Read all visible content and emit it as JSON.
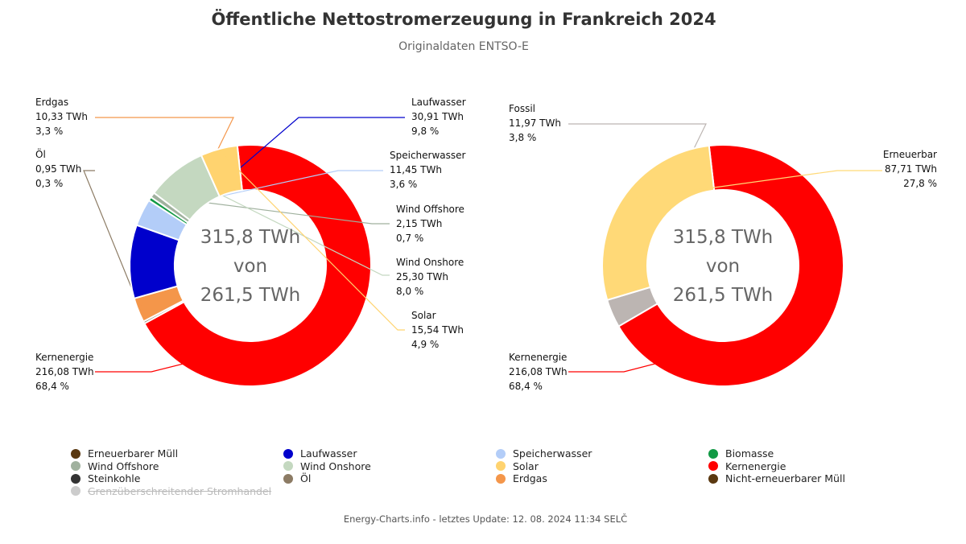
{
  "header": {
    "title": "Öffentliche Nettostromerzeugung in Frankreich 2024",
    "subtitle": "Originaldaten ENTSO-E"
  },
  "chart_data": [
    {
      "type": "pie",
      "variant": "donut",
      "center_text": [
        "315,8 TWh",
        "von",
        "261,5 TWh"
      ],
      "unit": "TWh",
      "slices": [
        {
          "name": "Kernenergie",
          "value": 216.08,
          "value_label": "216,08 TWh",
          "percent_label": "68,4 %",
          "color": "#ff0000"
        },
        {
          "name": "Öl",
          "value": 0.95,
          "value_label": "0,95 TWh",
          "percent_label": "0,3 %",
          "color": "#8c7b64"
        },
        {
          "name": "Erdgas",
          "value": 10.33,
          "value_label": "10,33 TWh",
          "percent_label": "3,3 %",
          "color": "#f4964a"
        },
        {
          "name": "Laufwasser",
          "value": 30.91,
          "value_label": "30,91 TWh",
          "percent_label": "9,8 %",
          "color": "#0000cc"
        },
        {
          "name": "Speicherwasser",
          "value": 11.45,
          "value_label": "11,45 TWh",
          "percent_label": "3,6 %",
          "color": "#b3cdf8"
        },
        {
          "name": "Biomasse",
          "value": 1.6,
          "value_label": "",
          "percent_label": "",
          "color": "#119944"
        },
        {
          "name": "Wind Offshore",
          "value": 2.15,
          "value_label": "2,15 TWh",
          "percent_label": "0,7 %",
          "color": "#a0b19e"
        },
        {
          "name": "Wind Onshore",
          "value": 25.3,
          "value_label": "25,30 TWh",
          "percent_label": "8,0 %",
          "color": "#c4d8c0"
        },
        {
          "name": "Solar",
          "value": 15.54,
          "value_label": "15,54 TWh",
          "percent_label": "4,9 %",
          "color": "#ffd36f"
        }
      ]
    },
    {
      "type": "pie",
      "variant": "donut",
      "center_text": [
        "315,8 TWh",
        "von",
        "261,5 TWh"
      ],
      "unit": "TWh",
      "slices": [
        {
          "name": "Kernenergie",
          "value": 216.08,
          "value_label": "216,08 TWh",
          "percent_label": "68,4 %",
          "color": "#ff0000"
        },
        {
          "name": "Fossil",
          "value": 11.97,
          "value_label": "11,97 TWh",
          "percent_label": "3,8 %",
          "color": "#bcb5b2"
        },
        {
          "name": "Erneuerbar",
          "value": 87.71,
          "value_label": "87,71 TWh",
          "percent_label": "27,8 %",
          "color": "#ffd977"
        }
      ]
    }
  ],
  "legend": [
    {
      "label": "Erneuerbarer Müll",
      "color": "#5a3810",
      "hidden": false
    },
    {
      "label": "Laufwasser",
      "color": "#0000cc",
      "hidden": false
    },
    {
      "label": "Speicherwasser",
      "color": "#b3cdf8",
      "hidden": false
    },
    {
      "label": "Biomasse",
      "color": "#119944",
      "hidden": false
    },
    {
      "label": "Wind Offshore",
      "color": "#a0b19e",
      "hidden": false
    },
    {
      "label": "Wind Onshore",
      "color": "#c4d8c0",
      "hidden": false
    },
    {
      "label": "Solar",
      "color": "#ffd36f",
      "hidden": false
    },
    {
      "label": "Kernenergie",
      "color": "#ff0000",
      "hidden": false
    },
    {
      "label": "Steinkohle",
      "color": "#333333",
      "hidden": false
    },
    {
      "label": "Öl",
      "color": "#8c7b64",
      "hidden": false
    },
    {
      "label": "Erdgas",
      "color": "#f4964a",
      "hidden": false
    },
    {
      "label": "Nicht-erneuerbarer Müll",
      "color": "#5a3810",
      "hidden": false
    },
    {
      "label": "Grenzüberschreitender Stromhandel",
      "color": "#cccccc",
      "hidden": true
    }
  ],
  "footer": {
    "text": "Energy-Charts.info - letztes Update: 12. 08. 2024 11:34 SELČ"
  }
}
